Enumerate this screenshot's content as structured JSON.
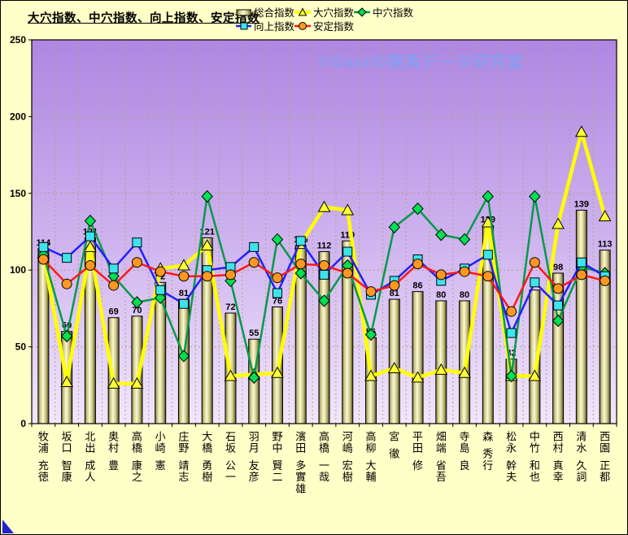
{
  "title": "大穴指数、中穴指数、向上指数、安定指数",
  "watermark": "©Ganiの競馬データ研究室",
  "colors": {
    "background": "#ffffc8",
    "plot_gradient_top": "#af86e1",
    "plot_gradient_mid": "#cdb1ee",
    "plot_gradient_bottom": "#f2e6fc",
    "gridline": "#b0a184",
    "bar_edge_dark": "#6e6930",
    "bar_mid": "#c9c384",
    "bar_center": "#fcf9d2",
    "ooana_line": "#ffff00",
    "ooana_marker": "#ffff33",
    "chuana_line": "#059a48",
    "chuana_marker": "#00e052",
    "koujou_line": "#2020ff",
    "koujou_marker": "#3ce4ee",
    "antei_line": "#ff1818",
    "antei_marker": "#ff9820",
    "watermark_color": "#8b9bee",
    "corner_triangle": "#2222cc"
  },
  "legend_rows": [
    [
      {
        "label": "総合指数",
        "marker": "bar"
      },
      {
        "label": "大穴指数",
        "marker": "triangle"
      },
      {
        "label": "中穴指数",
        "marker": "diamond"
      }
    ],
    [
      {
        "label": "向上指数",
        "marker": "square"
      },
      {
        "label": "安定指数",
        "marker": "circle"
      }
    ]
  ],
  "chart_data": {
    "type": "bar",
    "subtype": "bar+line combo",
    "title": "大穴指数、中穴指数、向上指数、安定指数",
    "xlabel": "",
    "ylabel": "",
    "ylim": [
      0,
      250
    ],
    "yticks": [
      0,
      50,
      100,
      150,
      200,
      250
    ],
    "grid": true,
    "legend_position": "top",
    "categories": [
      "牧浦 充徳",
      "坂口 智康",
      "北出 成人",
      "奥村 豊",
      "高橋 康之",
      "小崎 憲",
      "庄野 靖志",
      "大橋 勇樹",
      "石坂 公一",
      "羽月 友彦",
      "野中 賢二",
      "濱田 多實雄",
      "高橋 一哉",
      "河嶋 宏樹",
      "高柳 大輔",
      "宮 徹",
      "平田 修",
      "畑端 省吾",
      "寺島 良",
      "森 秀行",
      "松永 幹夫",
      "中竹 和也",
      "西村 真幸",
      "清水 久詞",
      "西園 正都"
    ],
    "series": [
      {
        "name": "総合指数",
        "type": "bar",
        "marker": "bar",
        "values": [
          114,
          60,
          121,
          69,
          70,
          92,
          81,
          121,
          72,
          55,
          76,
          116,
          112,
          119,
          56,
          81,
          86,
          80,
          80,
          129,
          42,
          87,
          98,
          139,
          113
        ],
        "labels_shown": true
      },
      {
        "name": "大穴指数",
        "type": "line",
        "marker": "triangle",
        "values": [
          111,
          27,
          115,
          26,
          26,
          101,
          103,
          116,
          31,
          32,
          33,
          117,
          141,
          139,
          31,
          36,
          30,
          35,
          33,
          131,
          31,
          31,
          130,
          190,
          135
        ]
      },
      {
        "name": "中穴指数",
        "type": "line",
        "marker": "diamond",
        "values": [
          110,
          57,
          132,
          96,
          79,
          82,
          44,
          148,
          93,
          30,
          120,
          98,
          80,
          103,
          58,
          128,
          140,
          123,
          120,
          148,
          31,
          148,
          67,
          102,
          98
        ]
      },
      {
        "name": "向上指数",
        "type": "line",
        "marker": "square",
        "values": [
          115,
          108,
          122,
          101,
          118,
          87,
          78,
          100,
          102,
          115,
          85,
          119,
          97,
          112,
          84,
          93,
          107,
          93,
          101,
          110,
          59,
          92,
          77,
          105,
          96
        ]
      },
      {
        "name": "安定指数",
        "type": "line",
        "marker": "circle",
        "values": [
          107,
          91,
          103,
          90,
          105,
          99,
          96,
          96,
          97,
          105,
          95,
          104,
          103,
          98,
          86,
          90,
          104,
          97,
          99,
          96,
          73,
          105,
          88,
          97,
          93
        ]
      }
    ]
  }
}
